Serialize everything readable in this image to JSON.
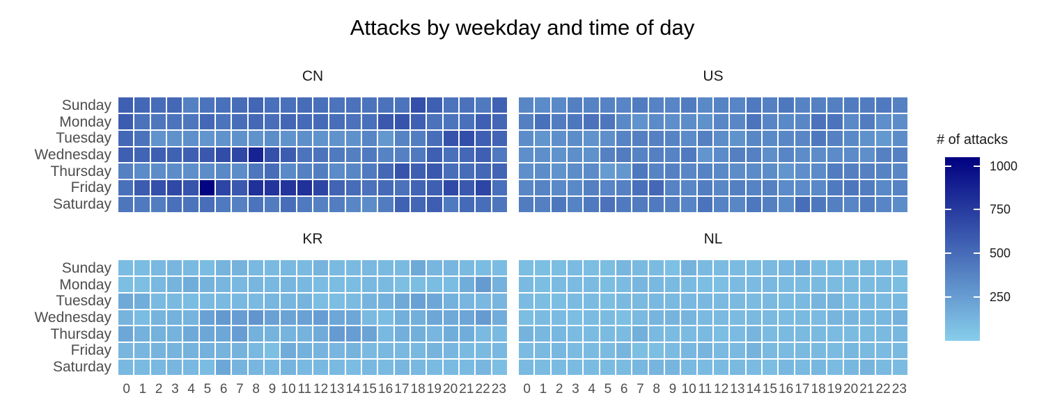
{
  "title": "Attacks by weekday and time of day",
  "legend": {
    "title": "# of attacks",
    "ticks": [
      1000,
      750,
      500,
      250
    ]
  },
  "chart_data": {
    "type": "heatmap",
    "title": "Attacks by weekday and time of day",
    "facet_layout": [
      [
        "CN",
        "US"
      ],
      [
        "KR",
        "NL"
      ]
    ],
    "rows": [
      "Sunday",
      "Monday",
      "Tuesday",
      "Wednesday",
      "Thursday",
      "Friday",
      "Saturday"
    ],
    "cols": [
      "0",
      "1",
      "2",
      "3",
      "4",
      "5",
      "6",
      "7",
      "8",
      "9",
      "10",
      "11",
      "12",
      "13",
      "14",
      "15",
      "16",
      "17",
      "18",
      "19",
      "20",
      "21",
      "22",
      "23"
    ],
    "legend_title": "# of attacks",
    "legend_ticks": [
      250,
      500,
      750,
      1000
    ],
    "color_scale": {
      "low": "#87CEEB",
      "high": "#000080",
      "domain": [
        0,
        1050
      ]
    },
    "grid": "off",
    "facets": [
      {
        "name": "CN",
        "values": [
          [
            560,
            520,
            500,
            520,
            390,
            460,
            480,
            500,
            530,
            480,
            480,
            500,
            480,
            460,
            470,
            460,
            470,
            460,
            640,
            560,
            460,
            470,
            430,
            550
          ],
          [
            580,
            470,
            450,
            460,
            450,
            520,
            460,
            490,
            520,
            490,
            530,
            510,
            510,
            490,
            470,
            480,
            600,
            620,
            560,
            470,
            460,
            480,
            560,
            530
          ],
          [
            520,
            470,
            300,
            310,
            320,
            290,
            300,
            310,
            300,
            330,
            300,
            320,
            300,
            300,
            310,
            370,
            280,
            380,
            410,
            490,
            630,
            650,
            560,
            540
          ],
          [
            560,
            540,
            560,
            550,
            560,
            600,
            660,
            690,
            870,
            640,
            580,
            460,
            460,
            430,
            400,
            430,
            380,
            390,
            430,
            560,
            480,
            520,
            560,
            430
          ],
          [
            390,
            340,
            330,
            330,
            320,
            330,
            350,
            330,
            450,
            500,
            350,
            390,
            410,
            340,
            360,
            430,
            520,
            620,
            570,
            600,
            490,
            500,
            520,
            540
          ],
          [
            480,
            580,
            640,
            680,
            620,
            1030,
            700,
            600,
            800,
            780,
            780,
            800,
            700,
            540,
            500,
            470,
            510,
            470,
            540,
            560,
            680,
            600,
            700,
            480
          ],
          [
            450,
            430,
            410,
            480,
            460,
            490,
            430,
            390,
            460,
            420,
            490,
            430,
            390,
            410,
            360,
            330,
            420,
            550,
            530,
            570,
            430,
            510,
            490,
            450
          ]
        ]
      },
      {
        "name": "US",
        "values": [
          [
            360,
            340,
            350,
            400,
            380,
            380,
            370,
            420,
            380,
            370,
            420,
            350,
            380,
            370,
            430,
            390,
            440,
            380,
            390,
            400,
            420,
            420,
            430,
            390
          ],
          [
            400,
            480,
            420,
            440,
            470,
            450,
            350,
            300,
            340,
            320,
            330,
            310,
            360,
            360,
            460,
            370,
            350,
            360,
            470,
            460,
            350,
            420,
            320,
            330
          ],
          [
            330,
            290,
            320,
            330,
            300,
            320,
            380,
            400,
            390,
            380,
            340,
            400,
            330,
            300,
            360,
            350,
            360,
            360,
            440,
            390,
            350,
            310,
            270,
            330
          ],
          [
            320,
            320,
            300,
            320,
            310,
            390,
            420,
            380,
            400,
            380,
            430,
            290,
            340,
            400,
            390,
            320,
            370,
            330,
            330,
            340,
            340,
            320,
            390,
            390
          ],
          [
            320,
            330,
            300,
            330,
            340,
            260,
            280,
            440,
            380,
            390,
            360,
            380,
            350,
            330,
            340,
            330,
            290,
            320,
            340,
            420,
            400,
            390,
            380,
            360
          ],
          [
            360,
            380,
            350,
            350,
            400,
            370,
            390,
            480,
            520,
            380,
            360,
            410,
            360,
            400,
            380,
            390,
            340,
            340,
            350,
            430,
            450,
            420,
            350,
            380
          ],
          [
            420,
            400,
            440,
            380,
            430,
            470,
            430,
            420,
            430,
            400,
            370,
            460,
            380,
            360,
            440,
            400,
            350,
            490,
            440,
            400,
            370,
            420,
            370,
            330
          ]
        ]
      },
      {
        "name": "KR",
        "values": [
          [
            90,
            90,
            110,
            120,
            100,
            90,
            130,
            140,
            110,
            100,
            110,
            100,
            130,
            100,
            100,
            110,
            100,
            100,
            190,
            120,
            120,
            100,
            90,
            90
          ],
          [
            80,
            75,
            110,
            130,
            170,
            140,
            120,
            110,
            120,
            110,
            120,
            110,
            90,
            90,
            90,
            110,
            100,
            75,
            85,
            90,
            90,
            170,
            260,
            150
          ],
          [
            190,
            170,
            100,
            100,
            90,
            100,
            100,
            110,
            100,
            120,
            120,
            130,
            85,
            85,
            95,
            130,
            150,
            190,
            230,
            200,
            150,
            120,
            110,
            120
          ],
          [
            130,
            90,
            130,
            150,
            130,
            230,
            270,
            250,
            290,
            230,
            220,
            230,
            250,
            200,
            200,
            100,
            90,
            160,
            160,
            200,
            190,
            210,
            260,
            170
          ],
          [
            200,
            150,
            150,
            140,
            190,
            200,
            200,
            250,
            150,
            140,
            130,
            140,
            180,
            260,
            250,
            220,
            110,
            160,
            160,
            120,
            170,
            170,
            100,
            100
          ],
          [
            120,
            120,
            130,
            130,
            140,
            150,
            130,
            140,
            110,
            75,
            180,
            150,
            130,
            120,
            140,
            100,
            110,
            110,
            110,
            130,
            120,
            100,
            100,
            110
          ],
          [
            110,
            100,
            110,
            120,
            110,
            90,
            200,
            130,
            120,
            110,
            130,
            110,
            110,
            100,
            90,
            110,
            100,
            120,
            110,
            100,
            100,
            100,
            120,
            75
          ]
        ]
      },
      {
        "name": "NL",
        "values": [
          [
            85,
            75,
            85,
            95,
            85,
            85,
            120,
            100,
            95,
            70,
            140,
            100,
            95,
            95,
            95,
            105,
            115,
            150,
            95,
            95,
            95,
            105,
            95,
            95
          ],
          [
            100,
            85,
            95,
            95,
            95,
            85,
            95,
            120,
            110,
            100,
            95,
            85,
            75,
            95,
            95,
            110,
            95,
            95,
            105,
            95,
            105,
            95,
            105,
            85
          ],
          [
            95,
            85,
            85,
            95,
            95,
            85,
            105,
            105,
            110,
            105,
            110,
            110,
            105,
            105,
            95,
            105,
            95,
            105,
            125,
            135,
            95,
            115,
            95,
            105
          ],
          [
            85,
            95,
            95,
            85,
            95,
            95,
            75,
            105,
            125,
            135,
            125,
            105,
            105,
            95,
            105,
            105,
            95,
            105,
            95,
            125,
            125,
            115,
            115,
            150
          ],
          [
            140,
            115,
            115,
            95,
            95,
            95,
            95,
            160,
            105,
            95,
            95,
            105,
            85,
            95,
            125,
            95,
            105,
            105,
            105,
            95,
            95,
            105,
            105,
            115
          ],
          [
            95,
            105,
            115,
            95,
            95,
            95,
            125,
            75,
            75,
            95,
            115,
            125,
            105,
            105,
            140,
            105,
            95,
            105,
            105,
            95,
            115,
            105,
            95,
            105
          ],
          [
            105,
            95,
            95,
            95,
            95,
            95,
            95,
            115,
            125,
            125,
            105,
            95,
            95,
            105,
            95,
            85,
            115,
            105,
            115,
            95,
            115,
            135,
            105,
            95
          ]
        ]
      }
    ]
  }
}
